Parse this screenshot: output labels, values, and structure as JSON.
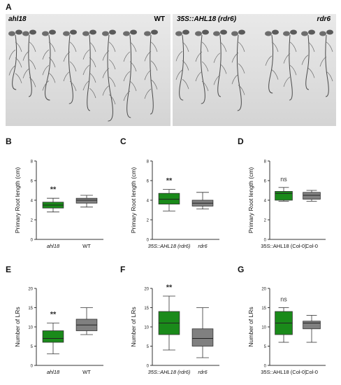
{
  "figure": {
    "panel_a": {
      "letter": "A",
      "left_photo": {
        "label_left": "ahl18",
        "label_right": "WT"
      },
      "right_photo": {
        "label_left": "35S::AHL18 (rdr6)",
        "label_right": "rdr6"
      }
    }
  },
  "colors": {
    "treatment": "#1a8a1a",
    "control": "#808080",
    "outline": "#333333"
  },
  "chart_data": [
    {
      "panel": "B",
      "type": "box",
      "ylabel": "Primary Root length (cm)",
      "ylim": [
        0,
        8
      ],
      "yticks": [
        "0",
        "2",
        "4",
        "6",
        "8"
      ],
      "categories": [
        {
          "label": "ahl18",
          "italic": true,
          "color": "treatment",
          "min": 2.8,
          "q1": 3.2,
          "median": 3.5,
          "q3": 3.8,
          "max": 4.2,
          "annotation": "**"
        },
        {
          "label": "WT",
          "italic": false,
          "color": "control",
          "min": 3.3,
          "q1": 3.7,
          "median": 4.0,
          "q3": 4.2,
          "max": 4.5,
          "annotation": ""
        }
      ]
    },
    {
      "panel": "C",
      "type": "box",
      "ylabel": "Primary Root length (cm)",
      "ylim": [
        0,
        8
      ],
      "yticks": [
        "0",
        "2",
        "4",
        "6",
        "8"
      ],
      "categories": [
        {
          "label": "35S::AHL18 (rdr6)",
          "italic": true,
          "color": "treatment",
          "min": 2.9,
          "q1": 3.6,
          "median": 4.1,
          "q3": 4.7,
          "max": 5.1,
          "annotation": "**"
        },
        {
          "label": "rdr6",
          "italic": true,
          "color": "control",
          "min": 3.1,
          "q1": 3.4,
          "median": 3.7,
          "q3": 4.0,
          "max": 4.8,
          "annotation": ""
        }
      ]
    },
    {
      "panel": "D",
      "type": "box",
      "ylabel": "Primary Root length (cm)",
      "ylim": [
        0,
        8
      ],
      "yticks": [
        "0",
        "2",
        "4",
        "6",
        "8"
      ],
      "categories": [
        {
          "label": "35S::AHL18 (Col-0)",
          "italic": false,
          "color": "treatment",
          "min": 3.9,
          "q1": 4.0,
          "median": 4.7,
          "q3": 4.9,
          "max": 5.3,
          "annotation": "ns"
        },
        {
          "label": "Col-0",
          "italic": false,
          "color": "control",
          "min": 3.9,
          "q1": 4.1,
          "median": 4.5,
          "q3": 4.8,
          "max": 5.0,
          "annotation": ""
        }
      ]
    },
    {
      "panel": "E",
      "type": "box",
      "ylabel": "Number of LRs",
      "ylim": [
        0,
        20
      ],
      "yticks": [
        "0",
        "5",
        "10",
        "15",
        "20"
      ],
      "categories": [
        {
          "label": "ahl18",
          "italic": true,
          "color": "treatment",
          "min": 3,
          "q1": 6,
          "median": 7,
          "q3": 9,
          "max": 11,
          "annotation": "**"
        },
        {
          "label": "WT",
          "italic": false,
          "color": "control",
          "min": 8,
          "q1": 9,
          "median": 10.5,
          "q3": 12,
          "max": 15,
          "annotation": ""
        }
      ]
    },
    {
      "panel": "F",
      "type": "box",
      "ylabel": "Number of LRs",
      "ylim": [
        0,
        20
      ],
      "yticks": [
        "0",
        "5",
        "10",
        "15",
        "20"
      ],
      "categories": [
        {
          "label": "35S::AHL18 (rdr6)",
          "italic": true,
          "color": "treatment",
          "min": 4,
          "q1": 8,
          "median": 11,
          "q3": 14,
          "max": 18,
          "annotation": "**"
        },
        {
          "label": "rdr6",
          "italic": true,
          "color": "control",
          "min": 2,
          "q1": 5,
          "median": 7,
          "q3": 9.5,
          "max": 15,
          "annotation": ""
        }
      ]
    },
    {
      "panel": "G",
      "type": "box",
      "ylabel": "Number of LRs",
      "ylim": [
        0,
        20
      ],
      "yticks": [
        "0",
        "5",
        "10",
        "15",
        "20"
      ],
      "categories": [
        {
          "label": "35S::AHL18 (Col-0)",
          "italic": false,
          "color": "treatment",
          "min": 6,
          "q1": 8,
          "median": 11,
          "q3": 14,
          "max": 15,
          "annotation": "ns"
        },
        {
          "label": "Col-0",
          "italic": false,
          "color": "control",
          "min": 6,
          "q1": 9.5,
          "median": 11,
          "q3": 11.5,
          "max": 13,
          "annotation": ""
        }
      ]
    }
  ]
}
